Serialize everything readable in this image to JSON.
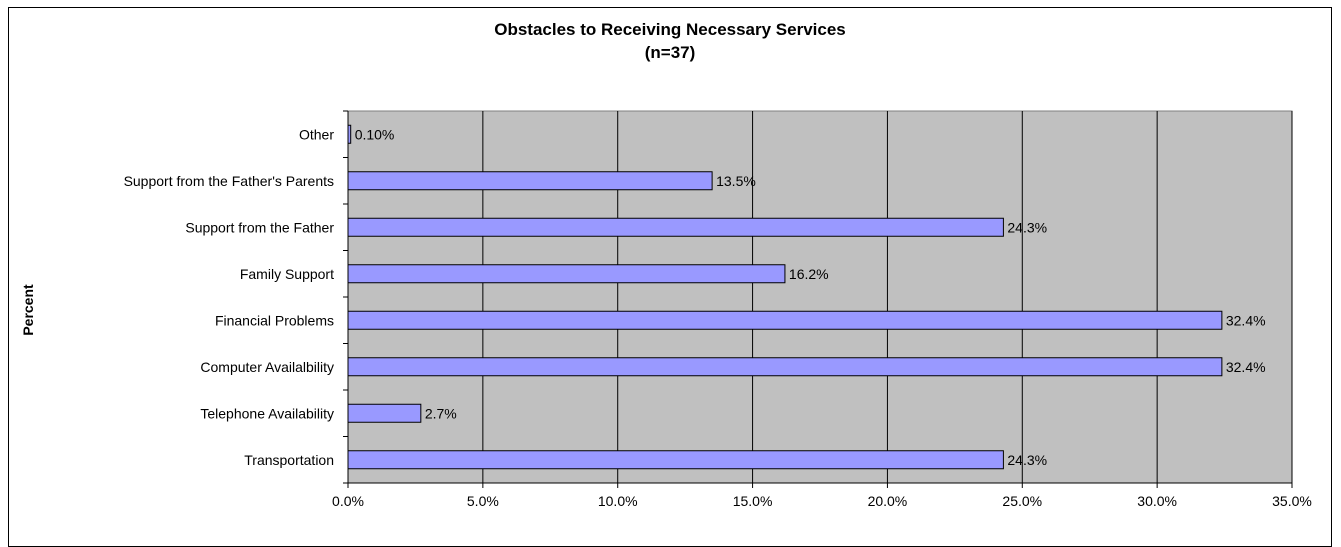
{
  "chart_data": {
    "type": "bar",
    "orientation": "horizontal",
    "title": "Obstacles to Receiving Necessary Services",
    "subtitle": "(n=37)",
    "xlabel": "",
    "ylabel": "Percent",
    "xlim": [
      0,
      35
    ],
    "x_ticks": [
      "0.0%",
      "5.0%",
      "10.0%",
      "15.0%",
      "20.0%",
      "25.0%",
      "30.0%",
      "35.0%"
    ],
    "grid": "vertical",
    "legend": "none",
    "categories": [
      "Other",
      "Support from the Father's Parents",
      "Support from the Father",
      "Family Support",
      "Financial Problems",
      "Computer Availalbility",
      "Telephone Availability",
      "Transportation"
    ],
    "values": [
      0.1,
      13.5,
      24.3,
      16.2,
      32.4,
      32.4,
      2.7,
      24.3
    ],
    "data_labels": [
      "0.10%",
      "13.5%",
      "24.3%",
      "16.2%",
      "32.4%",
      "32.4%",
      "2.7%",
      "24.3%"
    ],
    "colors": {
      "bar_fill": "#9999ff",
      "bar_stroke": "#000000",
      "plot_background": "#c0c0c0",
      "gridline": "#000000"
    }
  }
}
